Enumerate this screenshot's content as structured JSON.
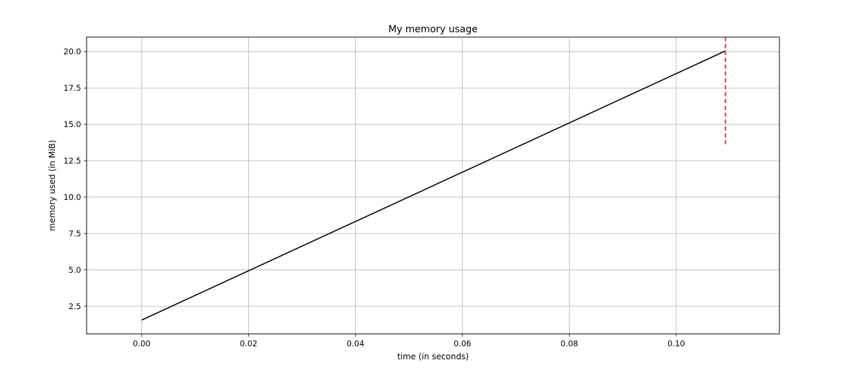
{
  "chart_data": {
    "type": "line",
    "title": "My memory usage",
    "xlabel": "time (in seconds)",
    "ylabel": "memory used (in MiB)",
    "xlim": [
      -0.0103,
      0.1193
    ],
    "ylim": [
      0.6,
      21.0
    ],
    "x_ticks": [
      0.0,
      0.02,
      0.04,
      0.06,
      0.08,
      0.1
    ],
    "x_tick_labels": [
      "0.00",
      "0.02",
      "0.04",
      "0.06",
      "0.08",
      "0.10"
    ],
    "y_ticks": [
      2.5,
      5.0,
      7.5,
      10.0,
      12.5,
      15.0,
      17.5,
      20.0
    ],
    "y_tick_labels": [
      "2.5",
      "5.0",
      "7.5",
      "10.0",
      "12.5",
      "15.0",
      "17.5",
      "20.0"
    ],
    "grid": true,
    "series": [
      {
        "color": "#000000",
        "style": "solid",
        "x": [
          0.0,
          0.1092
        ],
        "y": [
          1.55,
          20.05
        ]
      }
    ],
    "markers": [
      {
        "type": "vline",
        "color": "#d62728",
        "style": "dashed",
        "x": 0.1092,
        "y_from": 13.6,
        "y_to": 21.0
      }
    ]
  }
}
